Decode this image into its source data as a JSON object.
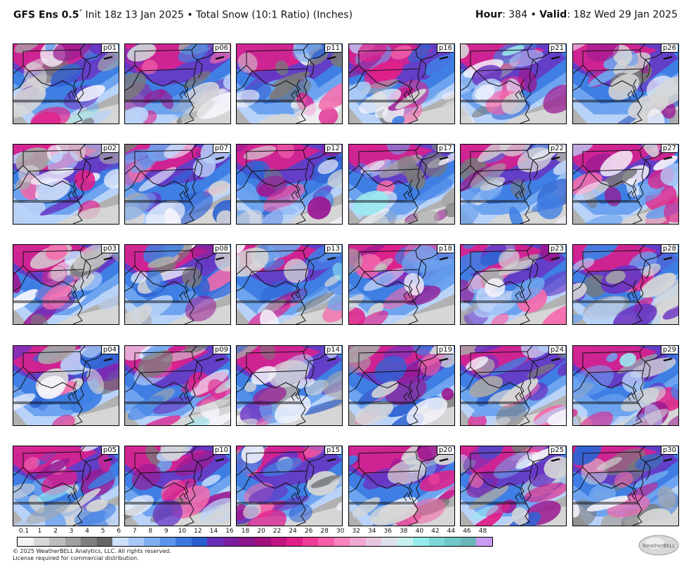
{
  "header": {
    "model": "GFS Ens 0.5",
    "degree": "°",
    "init": "Init 18z 13 Jan 2025",
    "bullet": "•",
    "product": "Total Snow (10:1 Ratio) (Inches)",
    "hour_label": "Hour",
    "hour_value": ": 384",
    "valid_label": "Valid",
    "valid_value": ": 18z Wed 29 Jan 2025"
  },
  "panels": [
    [
      "p01",
      "p06",
      "p11",
      "p16",
      "p21",
      "p26"
    ],
    [
      "p02",
      "p07",
      "p12",
      "p17",
      "p22",
      "p27"
    ],
    [
      "p03",
      "p08",
      "p13",
      "p18",
      "p23",
      "p28"
    ],
    [
      "p04",
      "p09",
      "p14",
      "p19",
      "p24",
      "p29"
    ],
    [
      "p05",
      "p10",
      "p15",
      "p20",
      "p25",
      "p30"
    ]
  ],
  "legend": {
    "ticks": [
      "0.1",
      "1",
      "2",
      "3",
      "4",
      "5",
      "6",
      "7",
      "8",
      "9",
      "10",
      "12",
      "14",
      "16",
      "18",
      "20",
      "22",
      "24",
      "26",
      "28",
      "30",
      "32",
      "34",
      "36",
      "38",
      "40",
      "42",
      "44",
      "46",
      "48"
    ],
    "colors": [
      "#f2f2f2",
      "#d8d8d8",
      "#bdbdbd",
      "#a0a0a0",
      "#808080",
      "#666666",
      "#cfe0fb",
      "#a8c8f7",
      "#7fb0f2",
      "#5a94ec",
      "#3d78e0",
      "#2a5fcf",
      "#6a2fb8",
      "#7a1fa0",
      "#8b158a",
      "#a0107a",
      "#c21682",
      "#e0208a",
      "#f03c98",
      "#f65fa8",
      "#f784bd",
      "#f0a7d1",
      "#e7c6e0",
      "#dfe0ee",
      "#c8f0f0",
      "#96ecec",
      "#7fd8d8",
      "#70c8c8",
      "#6cb6b9",
      "#c99bf2"
    ]
  },
  "copyright": [
    "© 2025 WeatherBELL Analytics, LLC. All rights reserved.",
    "License required for commercial distribution."
  ],
  "logo_text": "WeatherBELL"
}
